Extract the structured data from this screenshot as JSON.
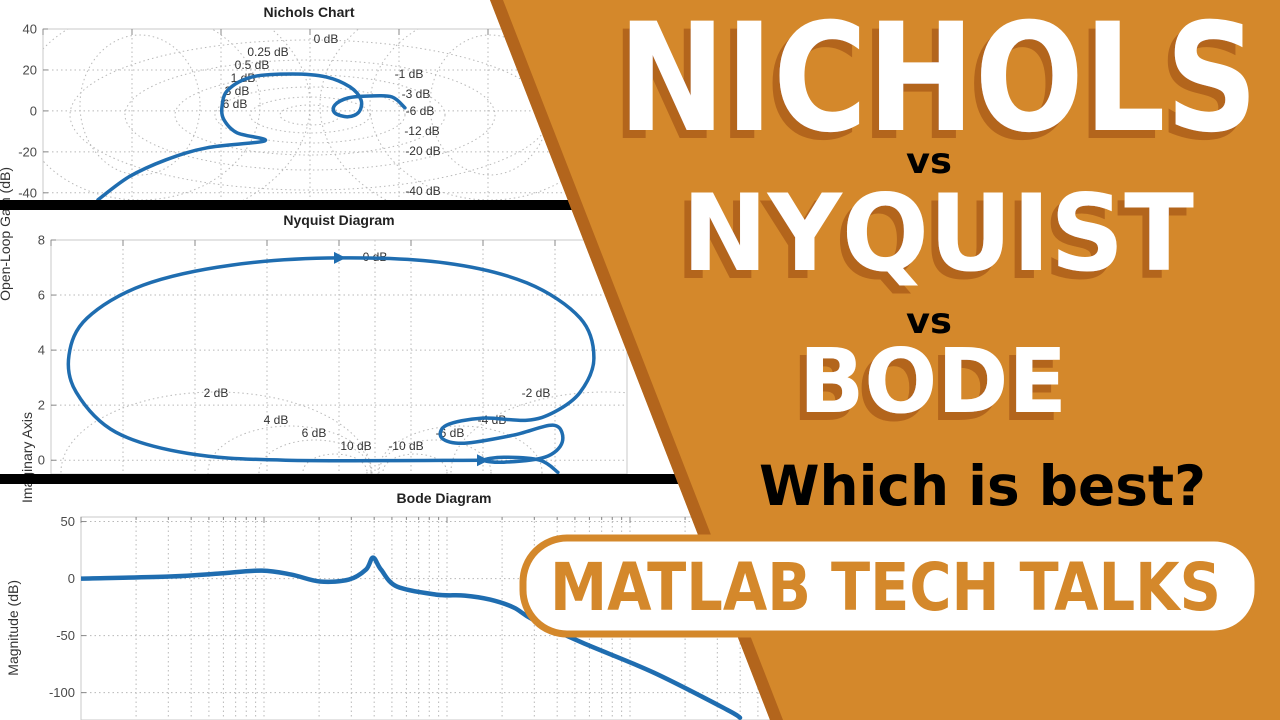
{
  "thumbnail": {
    "title_line1": "NICHOLS",
    "vs1": "vs",
    "title_line2": "NYQUIST",
    "vs2": "vs",
    "title_line3": "BODE",
    "question": "Which is best?",
    "series_badge": "MATLAB TECH TALKS"
  },
  "colors": {
    "orange": "#D4882B",
    "orange_dark": "#B3651C",
    "curve": "#1F6DB0",
    "grid": "#b8b8b8",
    "divider": "#000000",
    "text_dark": "#000000",
    "text_light": "#FFFFFF"
  },
  "chart_data": [
    {
      "type": "line",
      "title": "Nichols Chart",
      "ylabel": "Open-Loop Gain (dB)",
      "xlim": [
        -315,
        -45
      ],
      "ylim": [
        -44,
        40
      ],
      "xscale": "linear",
      "xticks": [
        -315,
        -270,
        -225,
        -180,
        -135,
        -90
      ],
      "yticks": [
        40,
        20,
        0,
        -20,
        -40
      ],
      "yticklabels": [
        "40",
        "20",
        "0",
        "-20",
        "-40"
      ],
      "grid": true,
      "grid_labels": [
        "0 dB",
        "0.25 dB",
        "0.5 dB",
        "1 dB",
        "3 dB",
        "6 dB",
        "-1 dB",
        "-3 dB",
        "-6 dB",
        "-12 dB",
        "-20 dB",
        "-40 dB"
      ],
      "series": [
        {
          "x": [
            -287.2,
            -271.5,
            -252.8,
            -232.1,
            -202.8,
            -216.9,
            -223.5,
            -224.5,
            -221.5,
            -209.3,
            -189.1,
            -171.9,
            -159.8,
            -154.2,
            -155.2,
            -160.8,
            -167.4,
            -167.4,
            -160.8,
            -149.7,
            -138.5,
            -132.0
          ],
          "y": [
            -43.4,
            -32.2,
            -23.9,
            -18.0,
            -14.6,
            -10.7,
            -4.4,
            2.0,
            10.2,
            16.6,
            18.0,
            16.6,
            11.7,
            5.4,
            -0.5,
            -2.9,
            -1.0,
            2.9,
            6.3,
            7.3,
            6.8,
            1.5
          ]
        }
      ]
    },
    {
      "type": "line",
      "title": "Nyquist Diagram",
      "ylabel": "Imaginary Axis",
      "xlim": [
        -5.5,
        2.5
      ],
      "ylim": [
        -0.5,
        8
      ],
      "xscale": "linear",
      "xticks": [
        -5.5,
        -4.5,
        -3.5,
        -2.5,
        -1.5,
        -0.5,
        0.5,
        1.5
      ],
      "yticks": [
        8,
        6,
        4,
        2,
        0
      ],
      "yticklabels": [
        "8",
        "6",
        "4",
        "2",
        "0"
      ],
      "grid": true,
      "grid_labels": [
        "0 dB",
        "2 dB",
        "-2 dB",
        "4 dB",
        "6 dB",
        "10 dB",
        "-4 dB",
        "-6 dB",
        "-10 dB"
      ],
      "series": [
        {
          "x": [
            0.5,
            -2.24,
            -3.6,
            -4.6,
            -5.15,
            -5.25,
            -5.0,
            -4.22,
            -2.99,
            -1.5,
            -0.01,
            1.11,
            1.85,
            2.04,
            1.85,
            1.49,
            1.11,
            0.49,
            -0.01,
            -0.07,
            0.24,
            0.92,
            1.49,
            1.6,
            1.36,
            0.79,
            0.51,
            0.79,
            1.29,
            1.54
          ],
          "y": [
            0,
            0,
            0.25,
            1.02,
            2.47,
            3.82,
            5.16,
            6.36,
            7.09,
            7.35,
            7.16,
            6.44,
            5.16,
            3.71,
            2.47,
            1.75,
            1.45,
            1.53,
            1.27,
            0.8,
            0.62,
            0.91,
            1.27,
            0.65,
            0.11,
            -0.07,
            0,
            0.11,
            0,
            -0.44
          ]
        }
      ]
    },
    {
      "type": "line",
      "title": "Bode Diagram",
      "ylabel": "Magnitude (dB)",
      "xlim": [
        0.1,
        1000
      ],
      "ylim": [
        -124,
        54
      ],
      "xscale": "log",
      "yticks": [
        50,
        0,
        -50,
        -100
      ],
      "yticklabels": [
        "50",
        "0",
        "-50",
        "-100"
      ],
      "grid": true,
      "series": [
        {
          "x": [
            0.1,
            0.306,
            0.561,
            0.975,
            1.41,
            2.02,
            2.91,
            3.61,
            3.94,
            4.36,
            5.33,
            8.71,
            12.5,
            17.2,
            23.2,
            29.5,
            54.7,
            135,
            339,
            399
          ],
          "y": [
            0,
            1.8,
            4.4,
            7.0,
            3.5,
            -2.6,
            -0.9,
            7.9,
            18.4,
            7.9,
            -7.0,
            -14.0,
            -14.9,
            -18.4,
            -25.4,
            -36.0,
            -56.1,
            -82.5,
            -115,
            -122
          ]
        }
      ]
    }
  ]
}
